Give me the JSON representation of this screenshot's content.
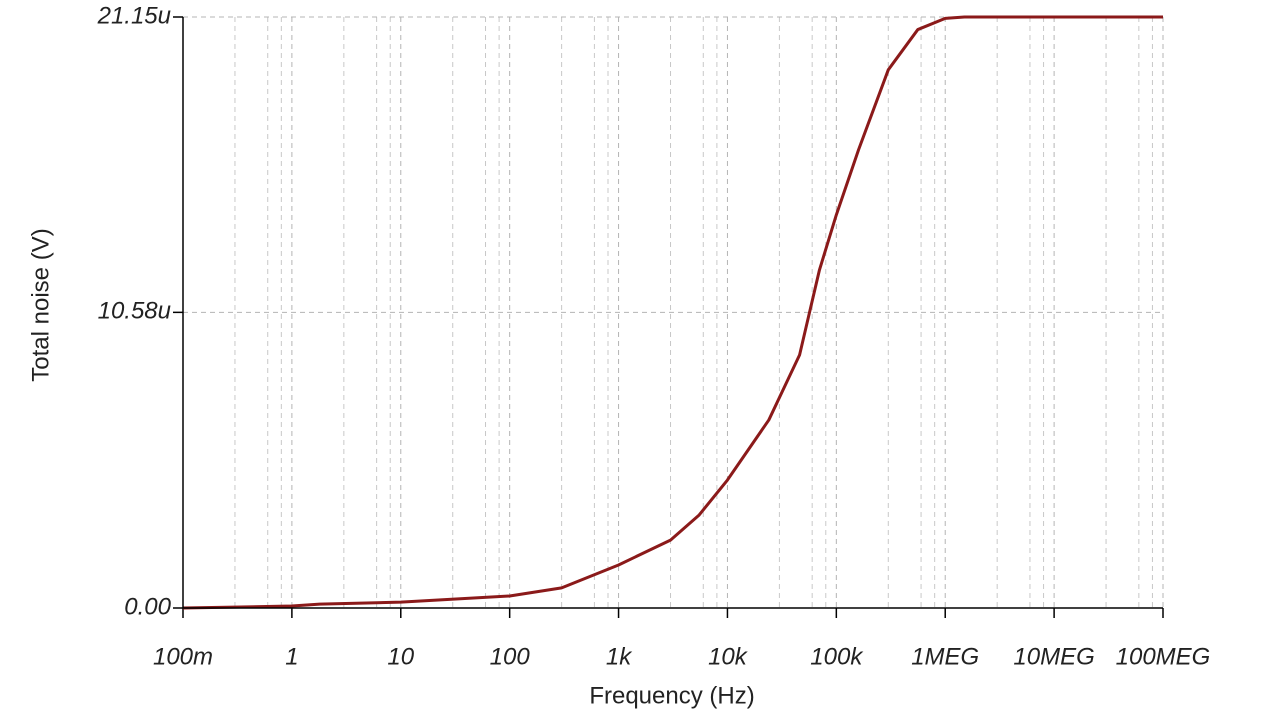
{
  "chart_data": {
    "type": "line",
    "xlabel": "Frequency (Hz)",
    "ylabel": "Total noise (V)",
    "xscale": "log",
    "xlim": [
      0.1,
      100000000
    ],
    "ylim": [
      0,
      21.15
    ],
    "xticks": [
      {
        "value": 0.1,
        "label": "100m"
      },
      1,
      10,
      100,
      {
        "value": 1000,
        "label": "1k"
      },
      {
        "value": 10000,
        "label": "10k"
      },
      {
        "value": 100000,
        "label": "100k"
      },
      {
        "value": 1000000,
        "label": "1MEG"
      },
      {
        "value": 10000000,
        "label": "10MEG"
      },
      {
        "value": 100000000,
        "label": "100MEG"
      }
    ],
    "yticks": [
      {
        "value": 0,
        "label": "0.00"
      },
      {
        "value": 10.58,
        "label": "10.58u"
      },
      {
        "value": 21.15,
        "label": "21.15u"
      }
    ],
    "grid": true,
    "x": [
      0.1,
      1,
      1.8,
      10,
      100,
      300,
      1000,
      3000,
      5500,
      10000,
      24000,
      46000,
      70000,
      100000,
      160000,
      300000,
      560000,
      1000000,
      1500000,
      100000000
    ],
    "series": [
      {
        "color": "#8b1a1a",
        "values": [
          0,
          0.07,
          0.14,
          0.21,
          0.43,
          0.72,
          1.54,
          2.43,
          3.33,
          4.58,
          6.73,
          9.06,
          12.1,
          14.07,
          16.4,
          19.26,
          20.7,
          21.1,
          21.15,
          21.15
        ]
      }
    ]
  }
}
